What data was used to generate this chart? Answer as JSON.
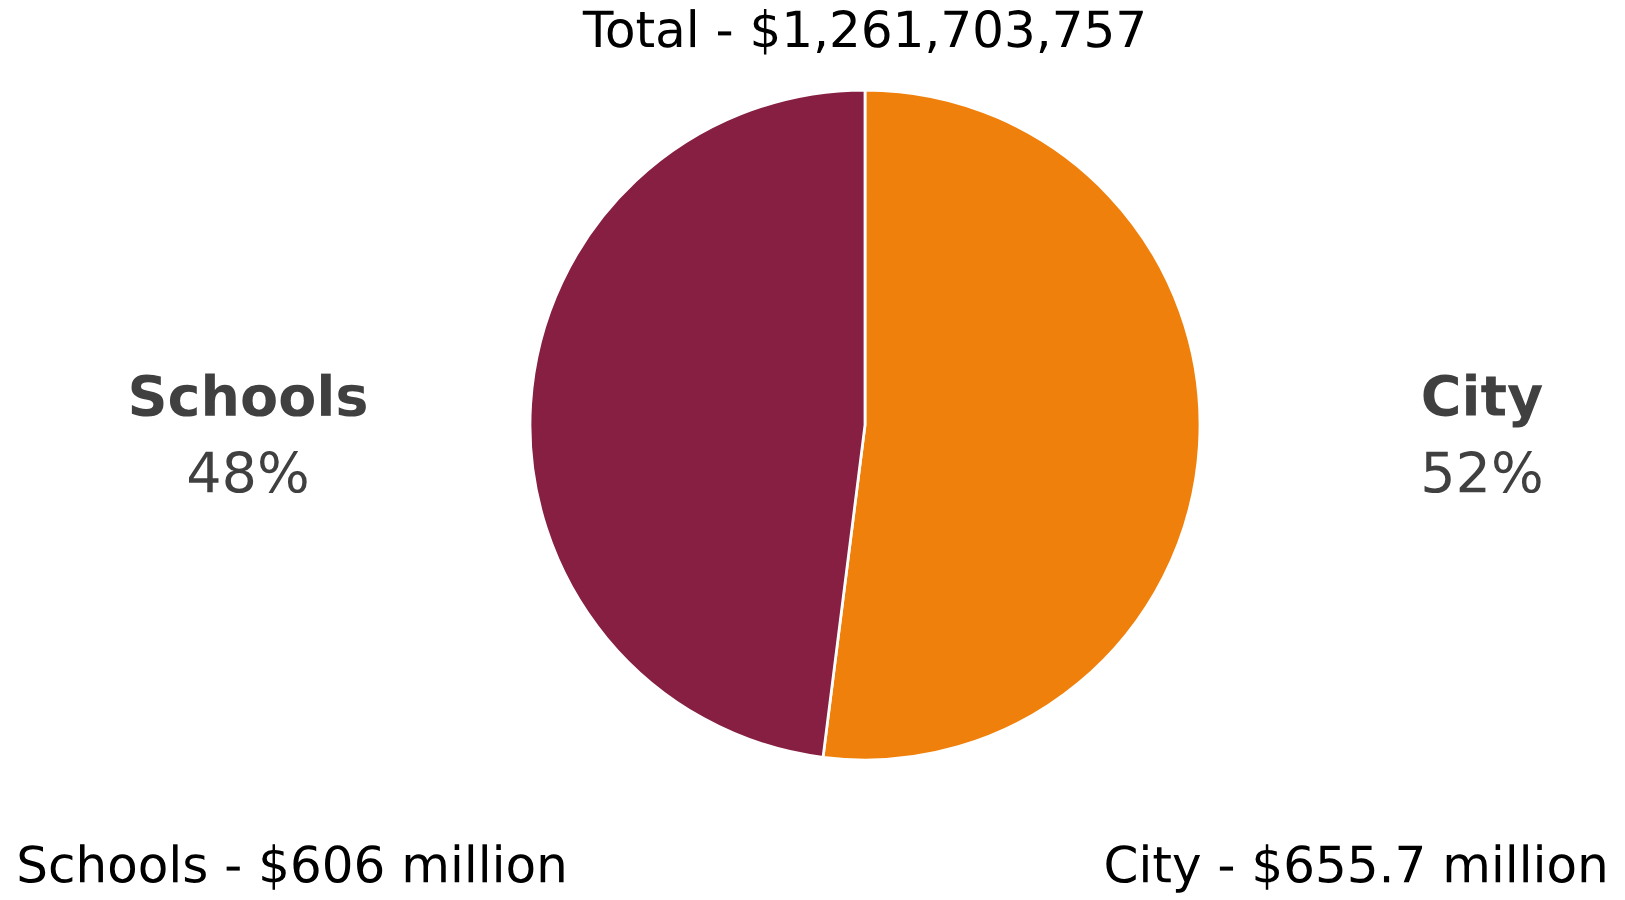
{
  "chart_data": {
    "type": "pie",
    "title": "Total - $1,261,703,757",
    "categories": [
      "City",
      "Schools"
    ],
    "values": [
      52,
      48
    ],
    "colors": [
      "#f0800c",
      "#861f41"
    ],
    "value_labels": [
      "52%",
      "48%"
    ],
    "annotations": [
      "Schools - $606 million",
      "City - $655.7 million"
    ]
  }
}
